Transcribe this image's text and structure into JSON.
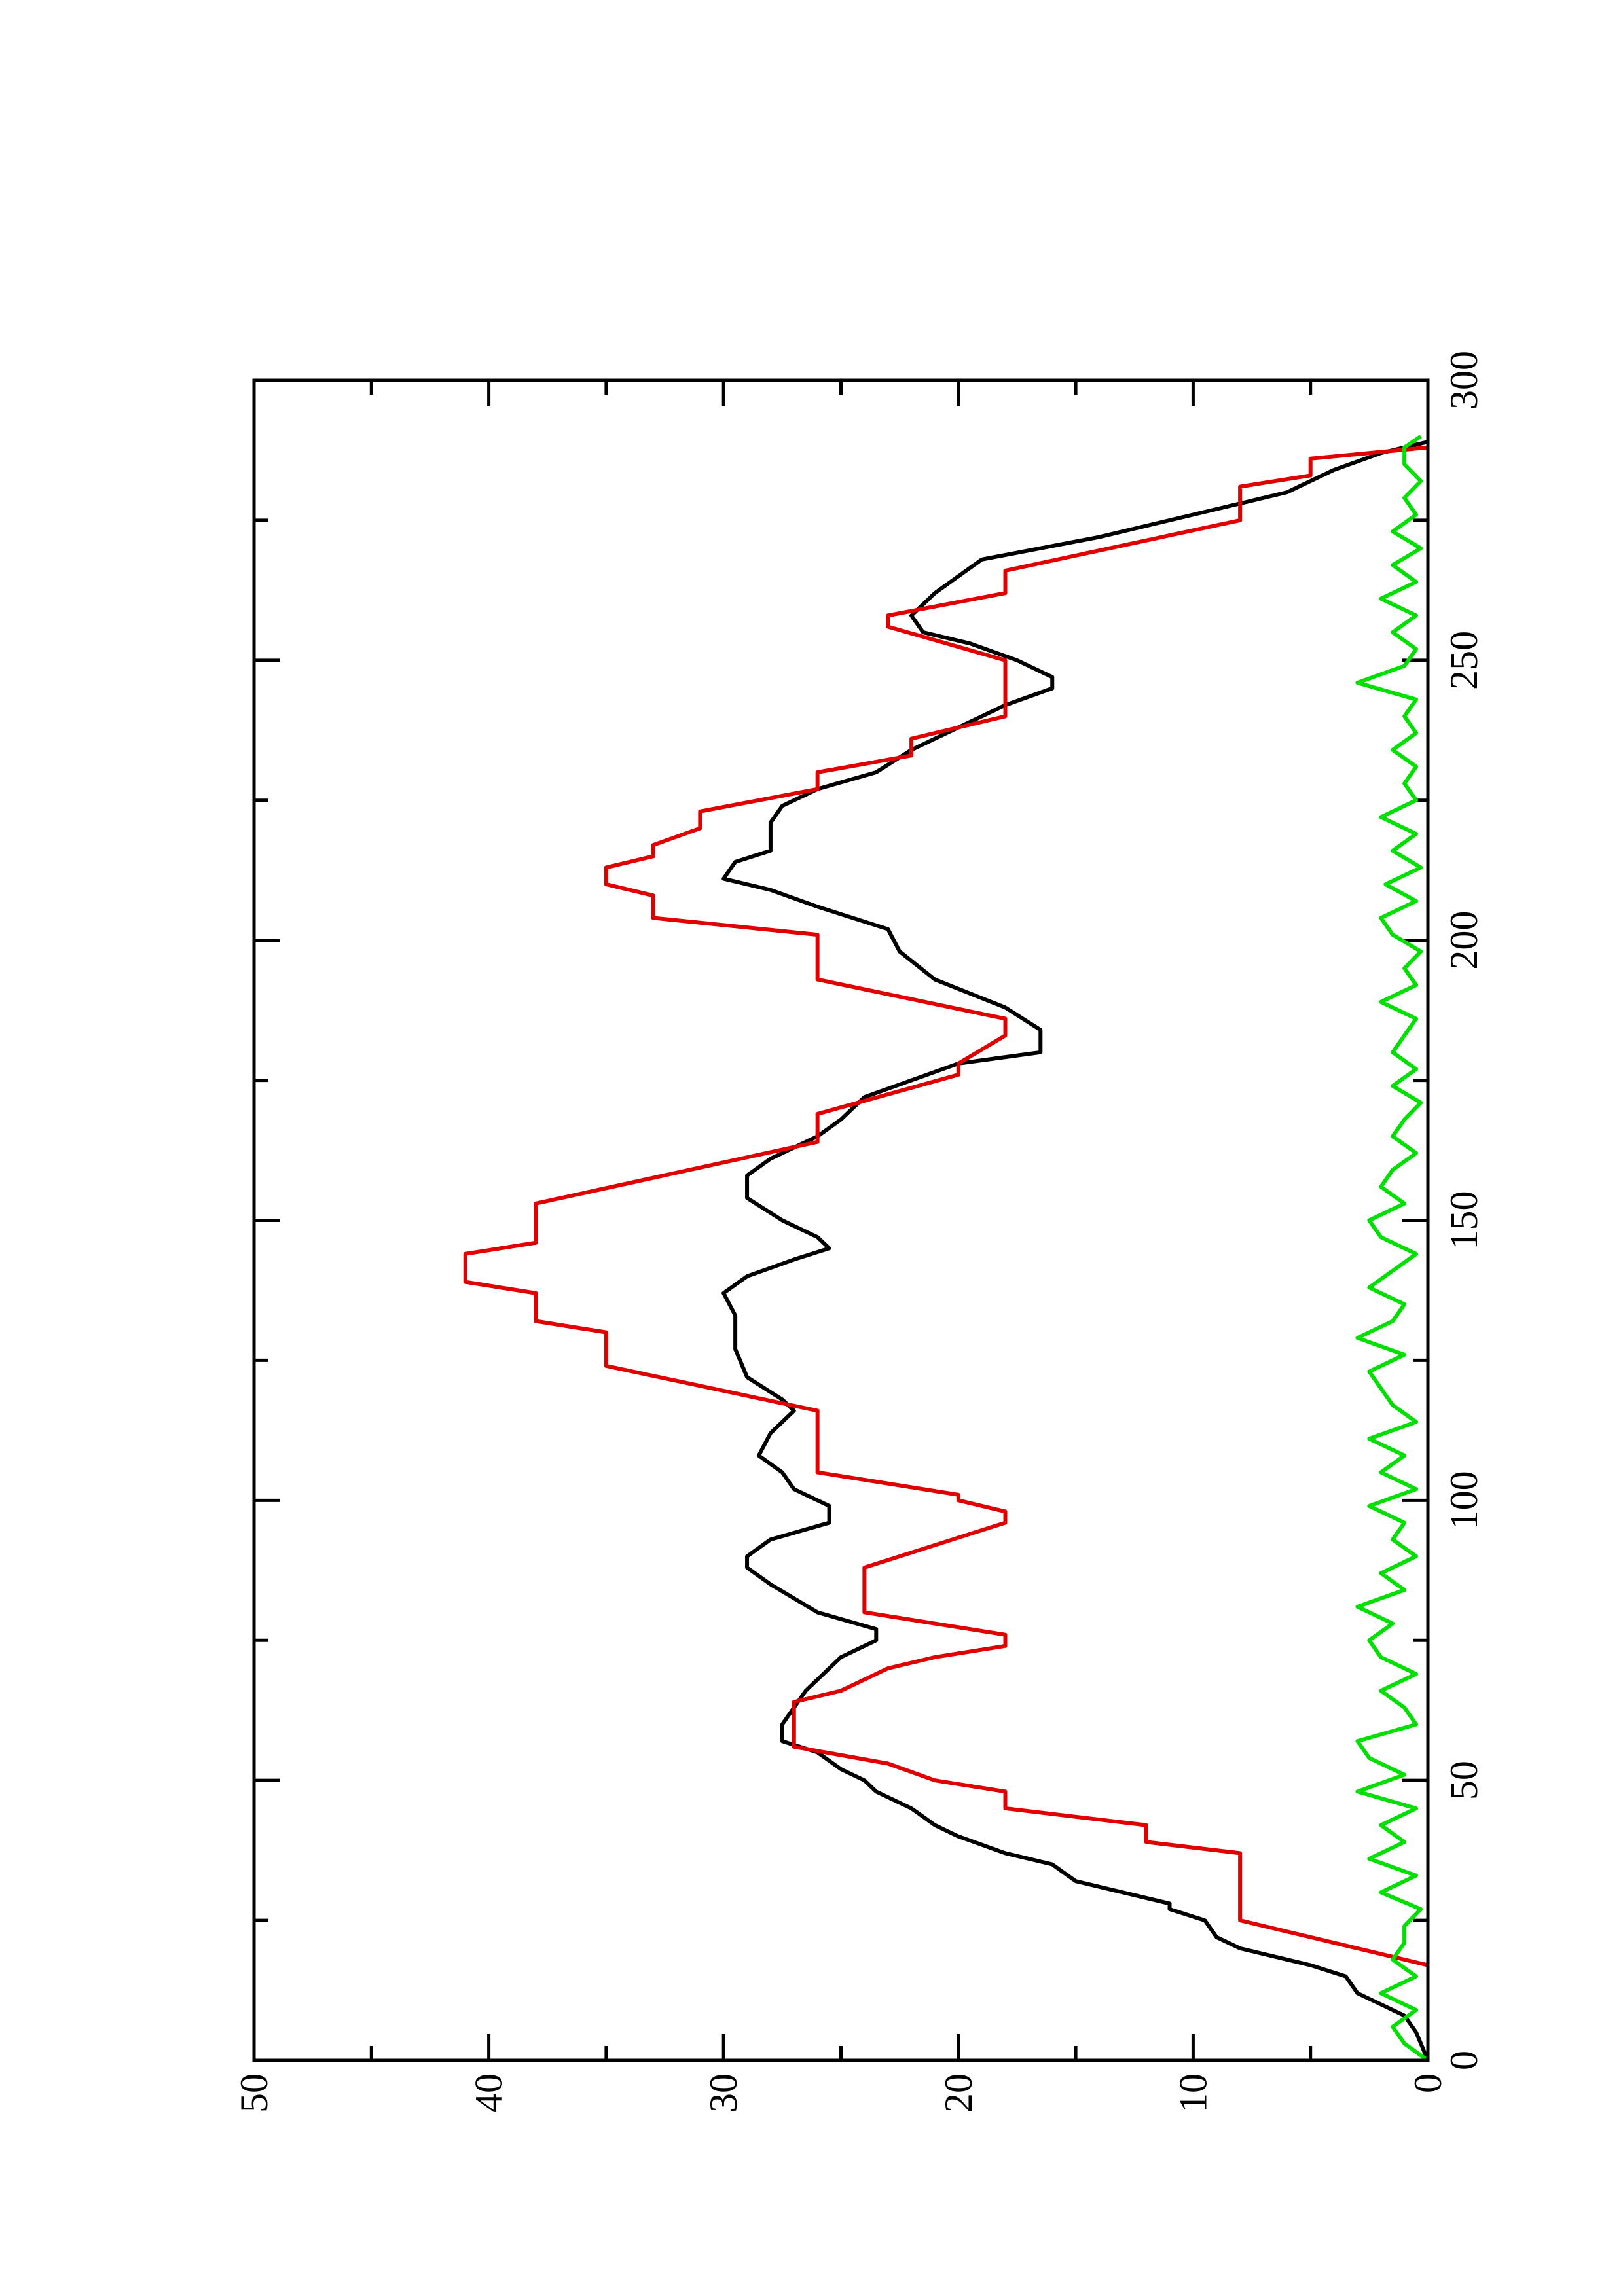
{
  "chart_data": {
    "type": "line",
    "xlim": [
      0,
      300
    ],
    "ylim": [
      0,
      50
    ],
    "xticks": [
      0,
      50,
      100,
      150,
      200,
      250,
      300
    ],
    "yticks": [
      0,
      10,
      20,
      30,
      40,
      50
    ],
    "xminorticks": [
      25,
      75,
      125,
      175,
      225,
      275
    ],
    "yminorticks": [
      5,
      15,
      25,
      35,
      45
    ],
    "series": [
      {
        "color": "#000000",
        "x": [
          0,
          5,
          8,
          10,
          12,
          15,
          17,
          20,
          22,
          25,
          27,
          28,
          30,
          32,
          35,
          37,
          40,
          42,
          45,
          48,
          50,
          52,
          55,
          57,
          60,
          63,
          66,
          70,
          72,
          75,
          77,
          80,
          85,
          88,
          90,
          93,
          96,
          99,
          102,
          105,
          108,
          112,
          116,
          118,
          122,
          127,
          133,
          137,
          140,
          143,
          145,
          147,
          150,
          154,
          158,
          161,
          165,
          168,
          172,
          175,
          178,
          180,
          184,
          188,
          193,
          198,
          202,
          206,
          209,
          211,
          214,
          216,
          218,
          221,
          224,
          227,
          230,
          234,
          238,
          242,
          245,
          247,
          250,
          253,
          255,
          258,
          262,
          265,
          268,
          272,
          276,
          278,
          280,
          284,
          287,
          289
        ],
        "values": [
          0,
          0.5,
          1,
          2,
          3,
          3.5,
          5,
          8,
          9,
          9.5,
          11,
          11,
          13,
          15,
          16,
          18,
          20,
          21,
          22,
          23.5,
          24,
          25,
          26,
          27.5,
          27.5,
          27,
          26.5,
          25.5,
          25,
          23.5,
          23.5,
          26,
          28,
          29,
          29,
          28,
          25.5,
          25.5,
          27,
          27.5,
          28.5,
          28,
          27,
          27.5,
          29,
          29.5,
          29.5,
          30,
          29,
          27,
          25.5,
          26,
          27.5,
          29,
          29,
          28,
          26,
          25,
          24,
          22,
          20,
          16.5,
          16.5,
          18,
          21,
          22.5,
          23,
          26,
          28,
          30,
          29.5,
          28,
          28,
          28,
          27.5,
          26,
          23.5,
          22,
          20,
          18,
          16,
          16,
          17.5,
          19.5,
          21.5,
          22,
          21,
          20,
          19,
          14,
          10,
          8,
          6,
          4,
          2,
          0
        ]
      },
      {
        "color": "#e00000",
        "x": [
          17,
          22,
          25,
          37,
          39,
          42,
          45,
          48,
          50,
          53,
          56,
          64,
          66,
          70,
          72,
          74,
          76,
          80,
          88,
          96,
          98,
          100,
          101,
          105,
          116,
          124,
          130,
          132,
          137,
          139,
          144,
          146,
          153,
          164,
          169,
          176,
          178,
          183,
          186,
          193,
          201,
          204,
          208,
          210,
          213,
          215,
          217,
          220,
          223,
          227,
          230,
          233,
          236,
          240,
          250,
          256,
          258,
          262,
          266,
          275,
          281,
          283,
          286,
          288
        ],
        "values": [
          0,
          5,
          8,
          8,
          12,
          12,
          18,
          18,
          21,
          23,
          27,
          27,
          25,
          23,
          21,
          18,
          18,
          24,
          24,
          18,
          18,
          20,
          20,
          26,
          26,
          35,
          35,
          38,
          38,
          41,
          41,
          38,
          38,
          26,
          26,
          20,
          20,
          18,
          18,
          26,
          26,
          33,
          33,
          35,
          35,
          33,
          33,
          31,
          31,
          26,
          26,
          22,
          22,
          18,
          18,
          23,
          23,
          18,
          18,
          8,
          8,
          5,
          5,
          0
        ]
      },
      {
        "color": "#00e000",
        "x": [
          0,
          3,
          6,
          9,
          12,
          15,
          18,
          21,
          24,
          27,
          30,
          33,
          36,
          39,
          42,
          45,
          48,
          51,
          54,
          57,
          60,
          63,
          66,
          69,
          72,
          75,
          78,
          81,
          84,
          87,
          90,
          93,
          96,
          99,
          102,
          105,
          108,
          111,
          114,
          117,
          120,
          123,
          126,
          129,
          132,
          135,
          138,
          141,
          144,
          147,
          150,
          153,
          156,
          159,
          162,
          165,
          168,
          171,
          174,
          177,
          180,
          183,
          186,
          189,
          192,
          195,
          198,
          201,
          204,
          207,
          210,
          213,
          216,
          219,
          222,
          225,
          228,
          231,
          234,
          237,
          240,
          243,
          246,
          249,
          252,
          255,
          258,
          261,
          264,
          267,
          270,
          273,
          276,
          279,
          282,
          285,
          288,
          290
        ],
        "values": [
          0,
          1,
          1.5,
          0.5,
          2,
          0.5,
          1.5,
          1,
          1,
          0.3,
          2,
          0.5,
          2.5,
          1,
          2,
          0.5,
          3,
          1,
          2.5,
          3,
          0.5,
          1,
          2,
          0.5,
          2,
          2.5,
          1.5,
          3,
          1,
          2,
          0.5,
          1.5,
          1,
          2.5,
          0.5,
          2,
          1,
          2.5,
          0.5,
          1.5,
          2,
          2.5,
          1,
          3,
          1.5,
          1,
          2.5,
          1.5,
          0.5,
          2,
          2.5,
          1,
          2,
          1.5,
          0.5,
          1.5,
          1,
          0.3,
          1.5,
          0.5,
          1.5,
          1,
          0.5,
          2,
          0.5,
          1,
          0.3,
          1.5,
          2,
          0.5,
          1.8,
          0.3,
          1.5,
          0.5,
          2,
          0.5,
          1,
          0.5,
          1.5,
          0.5,
          1,
          0.5,
          3,
          1,
          0.5,
          1.5,
          0.5,
          2,
          0.5,
          1.5,
          0.3,
          1.5,
          0.5,
          1,
          0.3,
          1,
          1,
          0.3
        ]
      }
    ]
  }
}
